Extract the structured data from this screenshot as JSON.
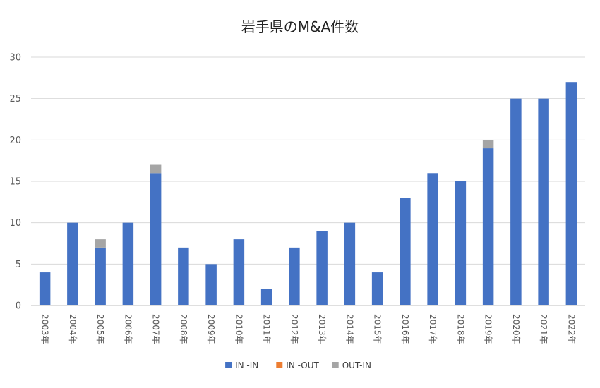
{
  "chart_data": {
    "type": "bar",
    "stacked": true,
    "title": "岩手県のM&A件数",
    "xlabel": "",
    "ylabel": "",
    "ylim": [
      0,
      30
    ],
    "yticks": [
      0,
      5,
      10,
      15,
      20,
      25,
      30
    ],
    "grid": true,
    "legend_position": "bottom",
    "categories": [
      "2003年",
      "2004年",
      "2005年",
      "2006年",
      "2007年",
      "2008年",
      "2009年",
      "2010年",
      "2011年",
      "2012年",
      "2013年",
      "2014年",
      "2015年",
      "2016年",
      "2017年",
      "2018年",
      "2019年",
      "2020年",
      "2021年",
      "2022年"
    ],
    "series": [
      {
        "name": "IN -IN",
        "color": "#4472c4",
        "values": [
          4,
          10,
          7,
          10,
          16,
          7,
          5,
          8,
          2,
          7,
          9,
          10,
          4,
          13,
          16,
          15,
          19,
          25,
          25,
          27
        ]
      },
      {
        "name": "IN -OUT",
        "color": "#ed7d31",
        "values": [
          0,
          0,
          0,
          0,
          0,
          0,
          0,
          0,
          0,
          0,
          0,
          0,
          0,
          0,
          0,
          0,
          0,
          0,
          0,
          0
        ]
      },
      {
        "name": "OUT-IN",
        "color": "#a5a5a5",
        "values": [
          0,
          0,
          1,
          0,
          1,
          0,
          0,
          0,
          0,
          0,
          0,
          0,
          0,
          0,
          0,
          0,
          1,
          0,
          0,
          0
        ]
      }
    ],
    "gridline_color": "#d9d9d9",
    "axis_color": "#bfbfbf"
  }
}
